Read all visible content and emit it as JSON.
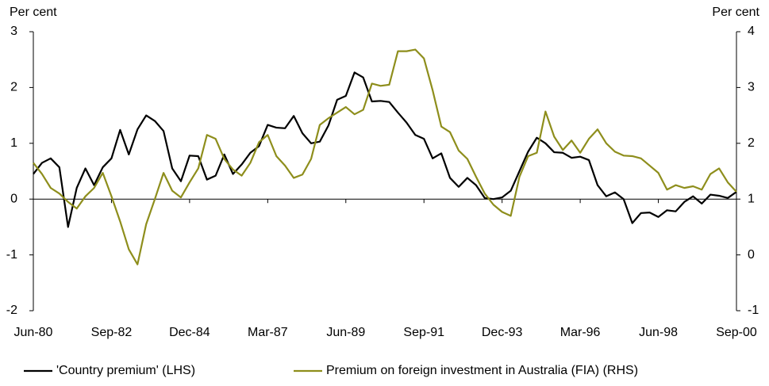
{
  "chart_data": {
    "type": "line",
    "y_label": "Per cent",
    "y2_label": "Per cent",
    "categories": [
      "Jun-80",
      null,
      null,
      null,
      null,
      null,
      null,
      null,
      null,
      "Sep-82",
      null,
      null,
      null,
      null,
      null,
      null,
      null,
      null,
      "Dec-84",
      null,
      null,
      null,
      null,
      null,
      null,
      null,
      null,
      "Mar-87",
      null,
      null,
      null,
      null,
      null,
      null,
      null,
      null,
      "Jun-89",
      null,
      null,
      null,
      null,
      null,
      null,
      null,
      null,
      "Sep-91",
      null,
      null,
      null,
      null,
      null,
      null,
      null,
      null,
      "Dec-93",
      null,
      null,
      null,
      null,
      null,
      null,
      null,
      null,
      "Mar-96",
      null,
      null,
      null,
      null,
      null,
      null,
      null,
      null,
      "Jun-98",
      null,
      null,
      null,
      null,
      null,
      null,
      null,
      null,
      "Sep-00"
    ],
    "series": [
      {
        "name": "'Country premium' (LHS)",
        "color": "#000000",
        "axis": "y",
        "values": [
          0.45,
          0.65,
          0.73,
          0.57,
          -0.5,
          0.2,
          0.55,
          0.25,
          0.57,
          0.73,
          1.24,
          0.8,
          1.25,
          1.5,
          1.4,
          1.22,
          0.55,
          0.32,
          0.78,
          0.77,
          0.35,
          0.42,
          0.8,
          0.45,
          0.62,
          0.83,
          0.95,
          1.33,
          1.28,
          1.27,
          1.49,
          1.18,
          1.0,
          1.03,
          1.32,
          1.78,
          1.85,
          2.27,
          2.18,
          1.75,
          1.76,
          1.74,
          1.55,
          1.37,
          1.15,
          1.08,
          0.73,
          0.82,
          0.38,
          0.22,
          0.38,
          0.25,
          0.02,
          0.0,
          0.03,
          0.15,
          0.5,
          0.85,
          1.1,
          1.0,
          0.84,
          0.83,
          0.74,
          0.76,
          0.7,
          0.25,
          0.05,
          0.12,
          0.0,
          -0.43,
          -0.25,
          -0.24,
          -0.32,
          -0.2,
          -0.22,
          -0.05,
          0.05,
          -0.08,
          0.08,
          0.06,
          0.02,
          0.13
        ]
      },
      {
        "name": "Premium on foreign investment in Australia (FIA) (RHS)",
        "color": "#8e8e1c",
        "axis": "y2",
        "values": [
          1.65,
          1.45,
          1.2,
          1.1,
          0.95,
          0.83,
          1.05,
          1.2,
          1.47,
          1.05,
          0.6,
          0.1,
          -0.17,
          0.55,
          1.0,
          1.47,
          1.15,
          1.03,
          1.3,
          1.55,
          2.15,
          2.08,
          1.72,
          1.53,
          1.42,
          1.65,
          2.02,
          2.15,
          1.77,
          1.6,
          1.38,
          1.44,
          1.72,
          2.33,
          2.45,
          2.55,
          2.65,
          2.52,
          2.6,
          3.07,
          3.03,
          3.05,
          3.65,
          3.65,
          3.68,
          3.52,
          2.95,
          2.3,
          2.2,
          1.87,
          1.72,
          1.4,
          1.1,
          0.9,
          0.77,
          0.7,
          1.4,
          1.77,
          1.83,
          2.57,
          2.12,
          1.88,
          2.05,
          1.83,
          2.08,
          2.25,
          2.0,
          1.85,
          1.78,
          1.77,
          1.73,
          1.6,
          1.47,
          1.17,
          1.25,
          1.2,
          1.23,
          1.17,
          1.45,
          1.55,
          1.3,
          1.13
        ]
      }
    ],
    "ylim": [
      -2,
      3
    ],
    "yticks": [
      -2,
      -1,
      0,
      1,
      2,
      3
    ],
    "y2lim": [
      -1,
      4
    ],
    "y2ticks": [
      -1,
      0,
      1,
      2,
      3,
      4
    ],
    "legend": "bottom"
  }
}
